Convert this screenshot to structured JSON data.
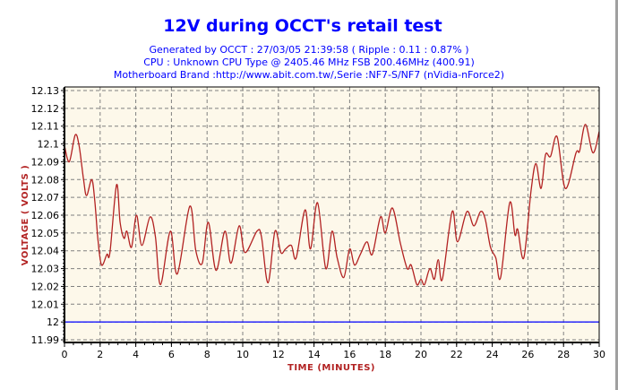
{
  "chart_data": {
    "type": "line",
    "title": "12V during OCCT's retail test",
    "subtitles": [
      "Generated by OCCT : 27/03/05 21:39:58 ( Ripple : 0.11 : 0.87% )",
      "CPU : Unknown CPU Type @ 2405.46 MHz FSB 200.46MHz (400.91)",
      "Motherboard Brand :http://www.abit.com.tw/,Serie :NF7-S/NF7 (nVidia-nForce2)"
    ],
    "xlabel": "TIME (MINUTES)",
    "ylabel": "VOLTAGE ( VOLTS )",
    "xlim": [
      0,
      30
    ],
    "ylim": [
      11.9885,
      12.132
    ],
    "xticks": [
      "0",
      "2",
      "4",
      "6",
      "8",
      "10",
      "12",
      "14",
      "16",
      "18",
      "20",
      "22",
      "24",
      "26",
      "28",
      "30"
    ],
    "yticks": [
      "12.13",
      "12.12",
      "12.11",
      "12.1",
      "12.09",
      "12.08",
      "12.07",
      "12.06",
      "12.05",
      "12.04",
      "12.03",
      "12.02",
      "12.01",
      "12",
      "11.99"
    ],
    "grid": true,
    "background": "#fdf8ea",
    "reference_line": {
      "y": 12.0,
      "color": "#0000ff"
    },
    "series": [
      {
        "color": "#b22222",
        "x": [
          0,
          0.27,
          0.6,
          0.82,
          1.07,
          1.24,
          1.53,
          1.7,
          1.88,
          2.08,
          2.38,
          2.55,
          2.92,
          3.12,
          3.34,
          3.5,
          3.76,
          4.04,
          4.34,
          4.8,
          5.1,
          5.39,
          5.94,
          6.33,
          7.03,
          7.37,
          7.73,
          8.07,
          8.5,
          9.0,
          9.34,
          9.8,
          10.13,
          10.8,
          11.05,
          11.42,
          11.81,
          12.14,
          12.4,
          12.73,
          13.0,
          13.5,
          13.8,
          14.2,
          14.66,
          15.01,
          15.3,
          15.67,
          16.0,
          16.27,
          16.6,
          16.97,
          17.27,
          17.73,
          18.0,
          18.4,
          18.85,
          19.23,
          19.45,
          19.77,
          20.0,
          20.2,
          20.5,
          20.75,
          20.97,
          21.2,
          21.75,
          22.05,
          22.58,
          22.97,
          23.34,
          23.6,
          23.9,
          24.2,
          24.47,
          24.98,
          25.27,
          25.43,
          25.77,
          26.18,
          26.45,
          26.74,
          26.99,
          27.27,
          27.64,
          28.1,
          28.7,
          28.9,
          29.23,
          29.65,
          30.0
        ],
        "y": [
          12.099,
          12.09,
          12.105,
          12.099,
          12.08,
          12.071,
          12.08,
          12.068,
          12.046,
          12.032,
          12.038,
          12.039,
          12.077,
          12.056,
          12.047,
          12.051,
          12.042,
          12.06,
          12.043,
          12.059,
          12.048,
          12.021,
          12.051,
          12.027,
          12.065,
          12.04,
          12.033,
          12.056,
          12.029,
          12.051,
          12.033,
          12.054,
          12.039,
          12.051,
          12.048,
          12.022,
          12.051,
          12.039,
          12.041,
          12.043,
          12.036,
          12.063,
          12.041,
          12.067,
          12.03,
          12.051,
          12.036,
          12.025,
          12.041,
          12.032,
          12.038,
          12.045,
          12.038,
          12.059,
          12.05,
          12.064,
          12.044,
          12.03,
          12.032,
          12.021,
          12.024,
          12.021,
          12.03,
          12.024,
          12.035,
          12.024,
          12.062,
          12.045,
          12.062,
          12.054,
          12.062,
          12.058,
          12.042,
          12.036,
          12.025,
          12.067,
          12.049,
          12.052,
          12.036,
          12.074,
          12.089,
          12.075,
          12.094,
          12.093,
          12.104,
          12.075,
          12.095,
          12.096,
          12.111,
          12.095,
          12.107
        ]
      }
    ]
  }
}
